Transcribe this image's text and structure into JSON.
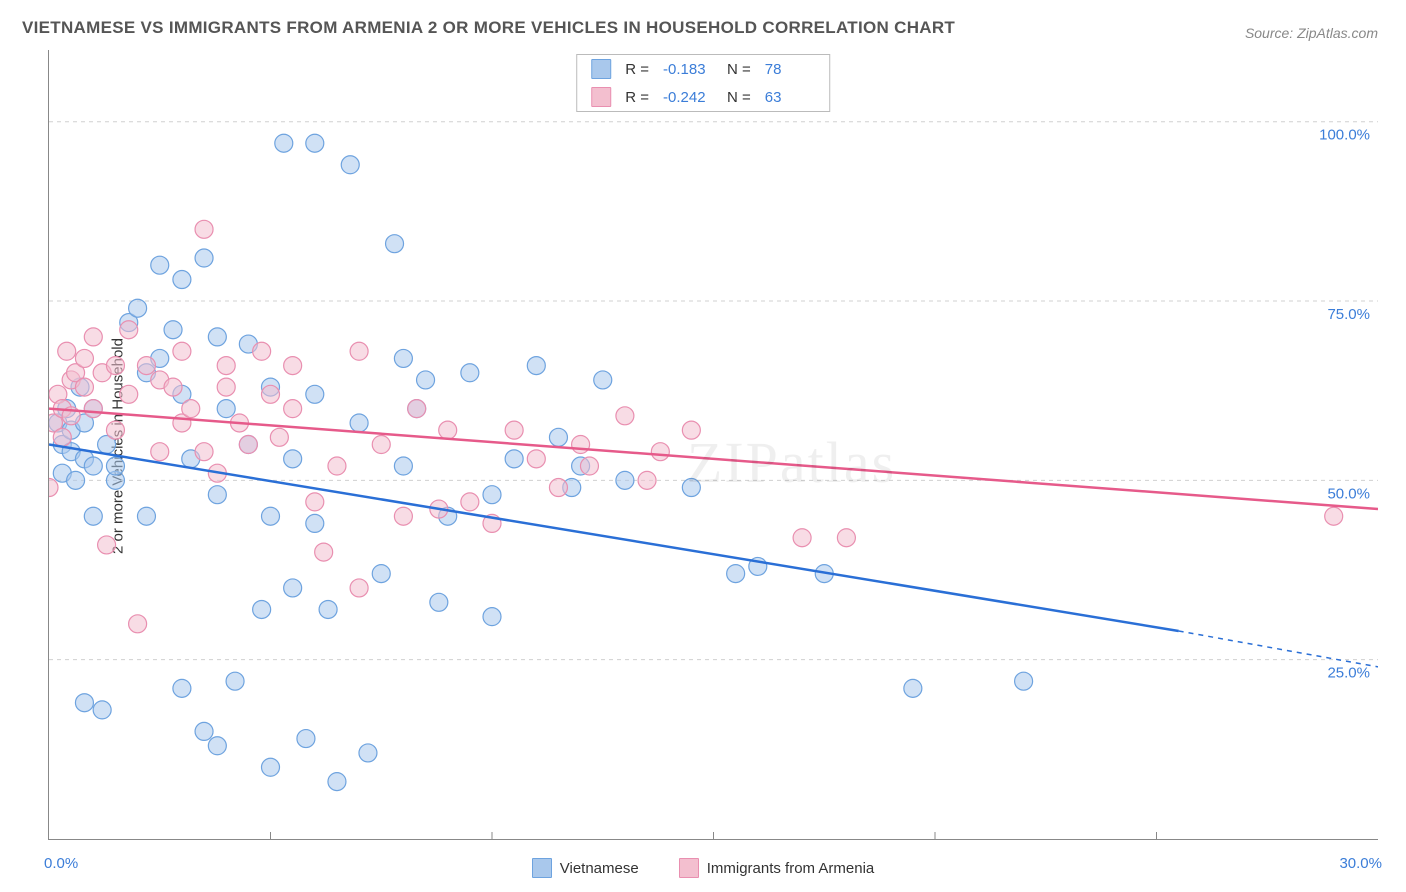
{
  "title": "VIETNAMESE VS IMMIGRANTS FROM ARMENIA 2 OR MORE VEHICLES IN HOUSEHOLD CORRELATION CHART",
  "source": "Source: ZipAtlas.com",
  "y_axis_label": "2 or more Vehicles in Household",
  "watermark": "ZIPatlas",
  "chart": {
    "type": "scatter",
    "xlim": [
      0,
      30
    ],
    "ylim": [
      0,
      110
    ],
    "x_ticks": {
      "positions": [
        0,
        30
      ],
      "labels": [
        "0.0%",
        "30.0%"
      ],
      "color": "#3b7dd8"
    },
    "x_minor_ticks": [
      5,
      10,
      15,
      20,
      25
    ],
    "y_gridlines": [
      25,
      50,
      75,
      100
    ],
    "y_tick_labels": [
      "25.0%",
      "50.0%",
      "75.0%",
      "100.0%"
    ],
    "y_tick_color": "#3b7dd8",
    "grid_color": "#d0d0d0",
    "axis_color": "#888888",
    "background": "#ffffff",
    "marker_radius": 9,
    "marker_opacity": 0.55,
    "series": [
      {
        "name": "Vietnamese",
        "color_fill": "#a9c8ec",
        "color_stroke": "#6ea3df",
        "R": "-0.183",
        "N": "78",
        "trend": {
          "x1": 0,
          "y1": 55,
          "x2": 25.5,
          "y2": 29,
          "dash_to_x": 30,
          "dash_to_y": 24,
          "color": "#2a6fd6",
          "width": 2.5
        },
        "points": [
          [
            0.2,
            58
          ],
          [
            0.3,
            55
          ],
          [
            0.4,
            60
          ],
          [
            0.3,
            51
          ],
          [
            0.5,
            54
          ],
          [
            0.5,
            57
          ],
          [
            0.7,
            63
          ],
          [
            0.6,
            50
          ],
          [
            0.8,
            53
          ],
          [
            0.8,
            58
          ],
          [
            1.0,
            45
          ],
          [
            1.0,
            60
          ],
          [
            1.0,
            52
          ],
          [
            0.8,
            19
          ],
          [
            1.2,
            18
          ],
          [
            1.3,
            55
          ],
          [
            1.5,
            50
          ],
          [
            1.5,
            52
          ],
          [
            1.8,
            72
          ],
          [
            2.0,
            74
          ],
          [
            2.2,
            65
          ],
          [
            2.2,
            45
          ],
          [
            2.5,
            80
          ],
          [
            2.5,
            67
          ],
          [
            2.8,
            71
          ],
          [
            3.0,
            62
          ],
          [
            3.0,
            78
          ],
          [
            3.0,
            21
          ],
          [
            3.2,
            53
          ],
          [
            3.5,
            81
          ],
          [
            3.5,
            15
          ],
          [
            3.8,
            70
          ],
          [
            3.8,
            48
          ],
          [
            3.8,
            13
          ],
          [
            4.0,
            60
          ],
          [
            4.2,
            22
          ],
          [
            4.5,
            69
          ],
          [
            4.5,
            55
          ],
          [
            4.8,
            32
          ],
          [
            5.0,
            45
          ],
          [
            5.0,
            63
          ],
          [
            5.0,
            10
          ],
          [
            5.3,
            97
          ],
          [
            5.5,
            35
          ],
          [
            5.5,
            53
          ],
          [
            5.8,
            14
          ],
          [
            6.0,
            97
          ],
          [
            6.0,
            44
          ],
          [
            6.0,
            62
          ],
          [
            6.3,
            32
          ],
          [
            6.5,
            8
          ],
          [
            6.8,
            94
          ],
          [
            7.0,
            58
          ],
          [
            7.2,
            12
          ],
          [
            7.5,
            37
          ],
          [
            7.8,
            83
          ],
          [
            8.0,
            67
          ],
          [
            8.0,
            52
          ],
          [
            8.3,
            60
          ],
          [
            8.5,
            64
          ],
          [
            8.8,
            33
          ],
          [
            9.0,
            45
          ],
          [
            9.5,
            65
          ],
          [
            10.0,
            48
          ],
          [
            10.0,
            31
          ],
          [
            10.5,
            53
          ],
          [
            11.0,
            66
          ],
          [
            11.5,
            56
          ],
          [
            11.8,
            49
          ],
          [
            12.0,
            52
          ],
          [
            12.5,
            64
          ],
          [
            13.0,
            50
          ],
          [
            14.5,
            49
          ],
          [
            15.5,
            37
          ],
          [
            16.0,
            38
          ],
          [
            17.5,
            37
          ],
          [
            19.5,
            21
          ],
          [
            22.0,
            22
          ]
        ]
      },
      {
        "name": "Immigrants from Armenia",
        "color_fill": "#f3bfcf",
        "color_stroke": "#e98fb0",
        "R": "-0.242",
        "N": "63",
        "trend": {
          "x1": 0,
          "y1": 60,
          "x2": 30,
          "y2": 46,
          "color": "#e65a8a",
          "width": 2.5
        },
        "points": [
          [
            0.0,
            49
          ],
          [
            0.1,
            58
          ],
          [
            0.2,
            62
          ],
          [
            0.3,
            56
          ],
          [
            0.3,
            60
          ],
          [
            0.4,
            68
          ],
          [
            0.5,
            64
          ],
          [
            0.5,
            59
          ],
          [
            0.6,
            65
          ],
          [
            0.8,
            63
          ],
          [
            0.8,
            67
          ],
          [
            1.0,
            70
          ],
          [
            1.0,
            60
          ],
          [
            1.2,
            65
          ],
          [
            1.3,
            41
          ],
          [
            1.5,
            66
          ],
          [
            1.5,
            57
          ],
          [
            1.8,
            71
          ],
          [
            1.8,
            62
          ],
          [
            2.0,
            30
          ],
          [
            2.2,
            66
          ],
          [
            2.5,
            54
          ],
          [
            2.5,
            64
          ],
          [
            2.8,
            63
          ],
          [
            3.0,
            68
          ],
          [
            3.0,
            58
          ],
          [
            3.2,
            60
          ],
          [
            3.5,
            54
          ],
          [
            3.5,
            85
          ],
          [
            3.8,
            51
          ],
          [
            4.0,
            63
          ],
          [
            4.0,
            66
          ],
          [
            4.3,
            58
          ],
          [
            4.5,
            55
          ],
          [
            4.8,
            68
          ],
          [
            5.0,
            62
          ],
          [
            5.2,
            56
          ],
          [
            5.5,
            60
          ],
          [
            5.5,
            66
          ],
          [
            6.0,
            47
          ],
          [
            6.2,
            40
          ],
          [
            6.5,
            52
          ],
          [
            7.0,
            68
          ],
          [
            7.0,
            35
          ],
          [
            7.5,
            55
          ],
          [
            8.0,
            45
          ],
          [
            8.3,
            60
          ],
          [
            8.8,
            46
          ],
          [
            9.0,
            57
          ],
          [
            9.5,
            47
          ],
          [
            10.0,
            44
          ],
          [
            10.5,
            57
          ],
          [
            11.0,
            53
          ],
          [
            11.5,
            49
          ],
          [
            12.0,
            55
          ],
          [
            12.2,
            52
          ],
          [
            13.0,
            59
          ],
          [
            13.5,
            50
          ],
          [
            13.8,
            54
          ],
          [
            14.5,
            57
          ],
          [
            17.0,
            42
          ],
          [
            18.0,
            42
          ],
          [
            29.0,
            45
          ]
        ]
      }
    ]
  },
  "legend_labels": {
    "r": "R =",
    "n": "N ="
  }
}
